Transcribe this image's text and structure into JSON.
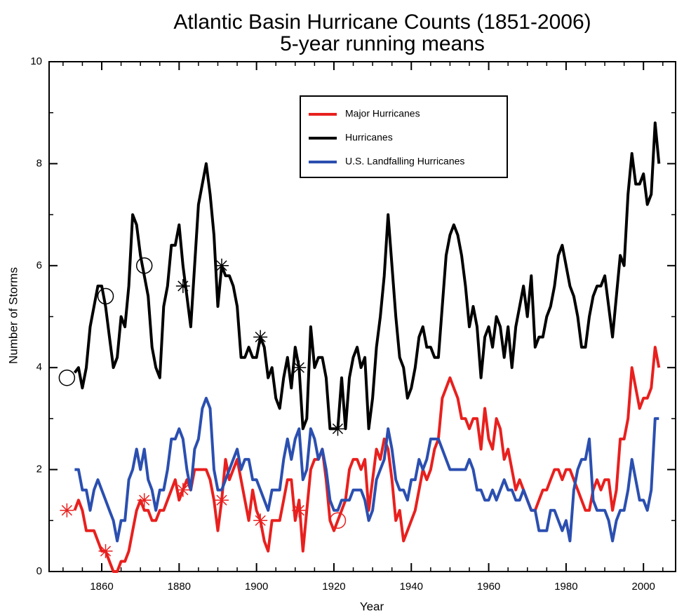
{
  "chart_data": {
    "type": "line",
    "title": "Atlantic Basin Hurricane Counts (1851-2006)",
    "subtitle": "5-year running means",
    "x_label": "Year",
    "y_label": "Number of Storms",
    "xlim": [
      1846.4,
      2008.3
    ],
    "ylim": [
      0,
      10
    ],
    "xticks": [
      1860,
      1880,
      1900,
      1920,
      1940,
      1960,
      1980,
      2000
    ],
    "xminorticks": [
      1850,
      1855,
      1865,
      1870,
      1875,
      1885,
      1890,
      1895,
      1905,
      1910,
      1915,
      1925,
      1930,
      1935,
      1945,
      1950,
      1955,
      1965,
      1970,
      1975,
      1985,
      1990,
      1995,
      2005
    ],
    "yticks": [
      0,
      2,
      4,
      6,
      8,
      10
    ],
    "yminorticks": [
      1,
      3,
      5,
      7,
      9
    ],
    "legend": "top-center",
    "x": [
      1853,
      1854,
      1855,
      1856,
      1857,
      1858,
      1859,
      1860,
      1861,
      1862,
      1863,
      1864,
      1865,
      1866,
      1867,
      1868,
      1869,
      1870,
      1871,
      1872,
      1873,
      1874,
      1875,
      1876,
      1877,
      1878,
      1879,
      1880,
      1881,
      1882,
      1883,
      1884,
      1885,
      1886,
      1887,
      1888,
      1889,
      1890,
      1891,
      1892,
      1893,
      1894,
      1895,
      1896,
      1897,
      1898,
      1899,
      1900,
      1901,
      1902,
      1903,
      1904,
      1905,
      1906,
      1907,
      1908,
      1909,
      1910,
      1911,
      1912,
      1913,
      1914,
      1915,
      1916,
      1917,
      1918,
      1919,
      1920,
      1921,
      1922,
      1923,
      1924,
      1925,
      1926,
      1927,
      1928,
      1929,
      1930,
      1931,
      1932,
      1933,
      1934,
      1935,
      1936,
      1937,
      1938,
      1939,
      1940,
      1941,
      1942,
      1943,
      1944,
      1945,
      1946,
      1947,
      1948,
      1949,
      1950,
      1951,
      1952,
      1953,
      1954,
      1955,
      1956,
      1957,
      1958,
      1959,
      1960,
      1961,
      1962,
      1963,
      1964,
      1965,
      1966,
      1967,
      1968,
      1969,
      1970,
      1971,
      1972,
      1973,
      1974,
      1975,
      1976,
      1977,
      1978,
      1979,
      1980,
      1981,
      1982,
      1983,
      1984,
      1985,
      1986,
      1987,
      1988,
      1989,
      1990,
      1991,
      1992,
      1993,
      1994,
      1995,
      1996,
      1997,
      1998,
      1999,
      2000,
      2001,
      2002,
      2003,
      2004
    ],
    "series": [
      {
        "name": "Major Hurricanes",
        "color": "#e8201e",
        "values": [
          1.2,
          1.4,
          1.2,
          0.8,
          0.8,
          0.8,
          0.6,
          0.4,
          0.4,
          0.2,
          0.0,
          0.0,
          0.2,
          0.2,
          0.4,
          0.8,
          1.2,
          1.4,
          1.2,
          1.2,
          1.0,
          1.0,
          1.2,
          1.2,
          1.4,
          1.6,
          1.8,
          1.4,
          1.6,
          1.8,
          1.6,
          2.0,
          2.0,
          2.0,
          2.0,
          1.8,
          1.4,
          0.8,
          1.4,
          2.2,
          1.8,
          2.0,
          2.2,
          1.8,
          1.4,
          1.0,
          1.6,
          1.2,
          1.0,
          0.6,
          0.4,
          1.0,
          1.0,
          1.0,
          1.4,
          1.8,
          1.8,
          1.0,
          1.4,
          0.4,
          1.2,
          2.0,
          2.2,
          2.2,
          2.4,
          1.8,
          1.0,
          0.8,
          1.0,
          1.2,
          1.4,
          2.0,
          2.2,
          2.2,
          2.0,
          2.2,
          1.2,
          1.8,
          2.4,
          2.2,
          2.6,
          2.4,
          1.8,
          1.0,
          1.2,
          0.6,
          0.8,
          1.0,
          1.2,
          1.6,
          2.0,
          1.8,
          2.0,
          2.4,
          2.6,
          3.4,
          3.6,
          3.8,
          3.6,
          3.4,
          3.0,
          3.0,
          2.8,
          3.0,
          3.0,
          2.4,
          3.2,
          2.6,
          2.4,
          3.0,
          2.8,
          2.2,
          2.4,
          2.0,
          1.6,
          1.8,
          1.6,
          1.4,
          1.2,
          1.2,
          1.4,
          1.6,
          1.6,
          1.8,
          2.0,
          2.0,
          1.8,
          2.0,
          2.0,
          1.8,
          1.6,
          1.4,
          1.2,
          1.2,
          1.6,
          1.8,
          1.6,
          1.8,
          1.8,
          1.2,
          1.6,
          2.6,
          2.6,
          3.0,
          4.0,
          3.6,
          3.2,
          3.4,
          3.4,
          3.6,
          4.4,
          4.0
        ]
      },
      {
        "name": "Hurricanes",
        "color": "#000000",
        "values": [
          3.9,
          4.0,
          3.6,
          4.0,
          4.8,
          5.2,
          5.6,
          5.6,
          5.2,
          4.6,
          4.0,
          4.2,
          5.0,
          4.8,
          5.6,
          7.0,
          6.8,
          6.2,
          5.8,
          5.4,
          4.4,
          4.0,
          3.8,
          5.2,
          5.6,
          6.4,
          6.4,
          6.8,
          6.0,
          5.4,
          4.8,
          6.0,
          7.2,
          7.6,
          8.0,
          7.4,
          6.6,
          5.2,
          6.0,
          5.8,
          5.8,
          5.6,
          5.2,
          4.2,
          4.2,
          4.4,
          4.2,
          4.2,
          4.6,
          4.4,
          3.8,
          4.0,
          3.4,
          3.2,
          3.8,
          4.2,
          3.6,
          4.4,
          4.0,
          2.8,
          3.0,
          4.8,
          4.0,
          4.2,
          4.2,
          3.8,
          2.8,
          2.8,
          2.8,
          3.8,
          2.8,
          3.8,
          4.2,
          4.4,
          4.0,
          4.2,
          2.8,
          3.4,
          4.4,
          5.0,
          5.8,
          7.0,
          6.0,
          5.0,
          4.2,
          4.0,
          3.4,
          3.6,
          4.0,
          4.6,
          4.8,
          4.4,
          4.4,
          4.2,
          4.2,
          5.2,
          6.2,
          6.6,
          6.8,
          6.6,
          6.2,
          5.6,
          4.8,
          5.2,
          4.8,
          3.8,
          4.6,
          4.8,
          4.4,
          5.0,
          4.8,
          4.2,
          4.8,
          4.0,
          4.8,
          5.2,
          5.6,
          5.0,
          5.8,
          4.4,
          4.6,
          4.6,
          5.0,
          5.2,
          5.6,
          6.2,
          6.4,
          6.0,
          5.6,
          5.4,
          5.0,
          4.4,
          4.4,
          5.0,
          5.4,
          5.6,
          5.6,
          5.8,
          5.2,
          4.6,
          5.4,
          6.2,
          6.0,
          7.4,
          8.2,
          7.6,
          7.6,
          7.8,
          7.2,
          7.4,
          8.8,
          8.0
        ]
      },
      {
        "name": "U.S. Landfalling Hurricanes",
        "color": "#2b4fb0",
        "values": [
          2.0,
          2.0,
          1.6,
          1.6,
          1.2,
          1.6,
          1.8,
          1.6,
          1.4,
          1.2,
          1.0,
          0.6,
          1.0,
          1.0,
          1.8,
          2.0,
          2.4,
          2.0,
          2.4,
          1.8,
          1.6,
          1.2,
          1.6,
          1.6,
          2.0,
          2.6,
          2.6,
          2.8,
          2.6,
          2.0,
          1.6,
          2.4,
          2.6,
          3.2,
          3.4,
          3.2,
          2.0,
          1.6,
          1.6,
          1.8,
          2.0,
          2.2,
          2.4,
          2.0,
          2.2,
          2.2,
          1.8,
          1.8,
          1.6,
          1.4,
          1.2,
          1.6,
          1.6,
          1.6,
          2.2,
          2.6,
          2.2,
          2.6,
          2.8,
          1.8,
          2.0,
          2.8,
          2.6,
          2.2,
          2.4,
          2.0,
          1.4,
          1.2,
          1.2,
          1.4,
          1.4,
          1.4,
          1.6,
          1.6,
          1.6,
          1.4,
          1.0,
          1.2,
          1.8,
          2.0,
          2.2,
          2.8,
          2.4,
          1.8,
          1.6,
          1.6,
          1.4,
          1.8,
          1.8,
          2.2,
          2.0,
          2.2,
          2.6,
          2.6,
          2.6,
          2.4,
          2.2,
          2.0,
          2.0,
          2.0,
          2.0,
          2.0,
          2.2,
          2.0,
          1.6,
          1.6,
          1.4,
          1.4,
          1.6,
          1.4,
          1.6,
          1.8,
          1.6,
          1.6,
          1.4,
          1.4,
          1.6,
          1.4,
          1.2,
          1.2,
          0.8,
          0.8,
          0.8,
          1.2,
          1.2,
          1.0,
          0.8,
          1.0,
          0.6,
          1.6,
          2.0,
          2.2,
          2.2,
          2.6,
          1.4,
          1.2,
          1.2,
          1.2,
          1.0,
          0.6,
          1.0,
          1.2,
          1.2,
          1.6,
          2.2,
          1.8,
          1.4,
          1.4,
          1.2,
          1.6,
          3.0,
          3.0
        ]
      }
    ],
    "points": [
      {
        "symbol": "circle",
        "color": "#000000",
        "x": [
          1851,
          1861,
          1871
        ],
        "values": [
          3.8,
          5.4,
          6.0
        ]
      },
      {
        "symbol": "asterisk",
        "color": "#000000",
        "x": [
          1881,
          1891,
          1901,
          1911,
          1921
        ],
        "values": [
          5.6,
          6.0,
          4.6,
          4.0,
          2.8
        ]
      },
      {
        "symbol": "asterisk",
        "color": "#e8201e",
        "x": [
          1851,
          1861,
          1871,
          1881,
          1891,
          1901,
          1911
        ],
        "values": [
          1.2,
          0.4,
          1.4,
          1.6,
          1.4,
          1.0,
          1.2
        ]
      },
      {
        "symbol": "circle",
        "color": "#e8201e",
        "x": [
          1921
        ],
        "values": [
          1.0
        ]
      }
    ]
  }
}
